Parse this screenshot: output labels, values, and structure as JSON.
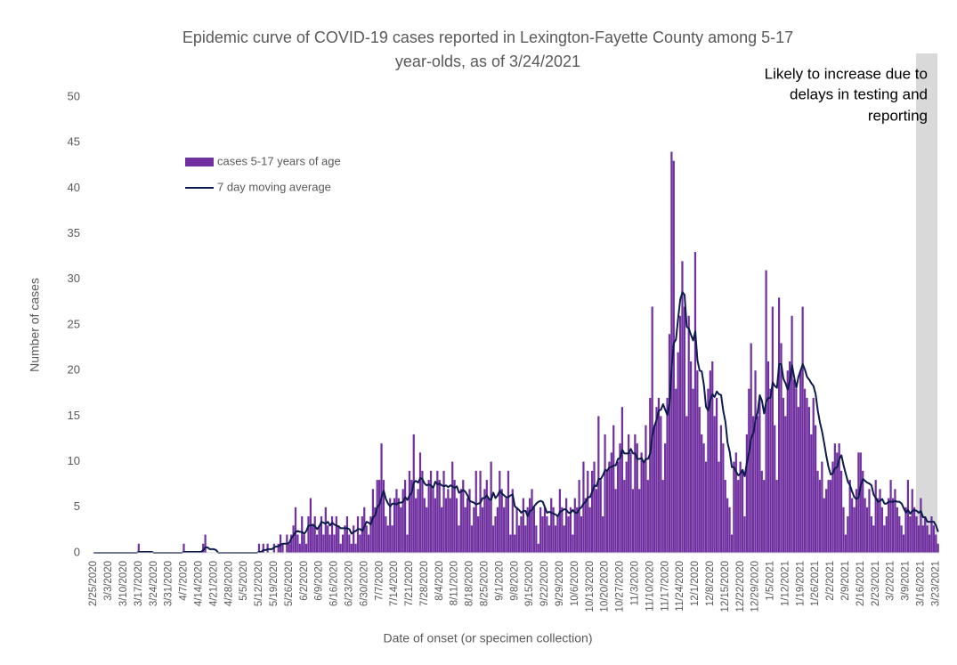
{
  "chart_data": {
    "type": "bar",
    "title": "Epidemic curve of COVID-19 cases reported in Lexington-Fayette County among 5-17",
    "title_line2": "year-olds, as of 3/24/2021",
    "annotation": [
      "Likely to increase due to",
      "delays in testing and",
      "reporting"
    ],
    "x_label": "Date of onset (or specimen collection)",
    "y_label": "Number of cases",
    "ylim": [
      0,
      50
    ],
    "yticks": [
      0,
      5,
      10,
      15,
      20,
      25,
      30,
      35,
      40,
      45,
      50
    ],
    "grid": false,
    "categories": [
      "2/25/2020",
      null,
      null,
      null,
      null,
      null,
      null,
      "3/3/2020",
      null,
      null,
      null,
      null,
      null,
      null,
      "3/10/2020",
      null,
      null,
      null,
      null,
      null,
      null,
      "3/17/2020",
      null,
      null,
      null,
      null,
      null,
      null,
      "3/24/2020",
      null,
      null,
      null,
      null,
      null,
      null,
      "3/31/2020",
      null,
      null,
      null,
      null,
      null,
      null,
      "4/7/2020",
      null,
      null,
      null,
      null,
      null,
      null,
      "4/14/2020",
      null,
      null,
      null,
      null,
      null,
      null,
      "4/21/2020",
      null,
      null,
      null,
      null,
      null,
      null,
      "4/28/2020",
      null,
      null,
      null,
      null,
      null,
      null,
      "5/5/2020",
      null,
      null,
      null,
      null,
      null,
      null,
      "5/12/2020",
      null,
      null,
      null,
      null,
      null,
      null,
      "5/19/2020",
      null,
      null,
      null,
      null,
      null,
      null,
      "5/26/2020",
      null,
      null,
      null,
      null,
      null,
      null,
      "6/2/2020",
      null,
      null,
      null,
      null,
      null,
      null,
      "6/9/2020",
      null,
      null,
      null,
      null,
      null,
      null,
      "6/16/2020",
      null,
      null,
      null,
      null,
      null,
      null,
      "6/23/2020",
      null,
      null,
      null,
      null,
      null,
      null,
      "6/30/2020",
      null,
      null,
      null,
      null,
      null,
      null,
      "7/7/2020",
      null,
      null,
      null,
      null,
      null,
      null,
      "7/14/2020",
      null,
      null,
      null,
      null,
      null,
      null,
      "7/21/2020",
      null,
      null,
      null,
      null,
      null,
      null,
      "7/28/2020",
      null,
      null,
      null,
      null,
      null,
      null,
      "8/4/2020",
      null,
      null,
      null,
      null,
      null,
      null,
      "8/11/2020",
      null,
      null,
      null,
      null,
      null,
      null,
      "8/18/2020",
      null,
      null,
      null,
      null,
      null,
      null,
      "8/25/2020",
      null,
      null,
      null,
      null,
      null,
      null,
      "9/1/2020",
      null,
      null,
      null,
      null,
      null,
      null,
      "9/8/2020",
      null,
      null,
      null,
      null,
      null,
      null,
      "9/15/2020",
      null,
      null,
      null,
      null,
      null,
      null,
      "9/22/2020",
      null,
      null,
      null,
      null,
      null,
      null,
      "9/29/2020",
      null,
      null,
      null,
      null,
      null,
      null,
      "10/6/2020",
      null,
      null,
      null,
      null,
      null,
      null,
      "10/13/2020",
      null,
      null,
      null,
      null,
      null,
      null,
      "10/20/2020",
      null,
      null,
      null,
      null,
      null,
      null,
      "10/27/2020",
      null,
      null,
      null,
      null,
      null,
      null,
      "11/3/2020",
      null,
      null,
      null,
      null,
      null,
      null,
      "11/10/2020",
      null,
      null,
      null,
      null,
      null,
      null,
      "11/17/2020",
      null,
      null,
      null,
      null,
      null,
      null,
      "11/24/2020",
      null,
      null,
      null,
      null,
      null,
      null,
      "12/1/2020",
      null,
      null,
      null,
      null,
      null,
      null,
      "12/8/2020",
      null,
      null,
      null,
      null,
      null,
      null,
      "12/15/2020",
      null,
      null,
      null,
      null,
      null,
      null,
      "12/22/2020",
      null,
      null,
      null,
      null,
      null,
      null,
      "12/29/2020",
      null,
      null,
      null,
      null,
      null,
      null,
      "1/5/2021",
      null,
      null,
      null,
      null,
      null,
      null,
      "1/12/2021",
      null,
      null,
      null,
      null,
      null,
      null,
      "1/19/2021",
      null,
      null,
      null,
      null,
      null,
      null,
      "1/26/2021",
      null,
      null,
      null,
      null,
      null,
      null,
      "2/2/2021",
      null,
      null,
      null,
      null,
      null,
      null,
      "2/9/2021",
      null,
      null,
      null,
      null,
      null,
      null,
      "2/16/2021",
      null,
      null,
      null,
      null,
      null,
      null,
      "2/23/2021",
      null,
      null,
      null,
      null,
      null,
      null,
      "3/2/2021",
      null,
      null,
      null,
      null,
      null,
      null,
      "3/9/2021",
      null,
      null,
      null,
      null,
      null,
      null,
      "3/16/2021",
      null,
      null,
      null,
      null,
      null,
      null,
      "3/23/2021",
      null
    ],
    "series": [
      {
        "name": "cases 5-17 years of age",
        "type": "bar",
        "color": "#7030a0",
        "values": [
          0,
          0,
          0,
          0,
          0,
          0,
          0,
          0,
          0,
          0,
          0,
          0,
          0,
          0,
          0,
          0,
          0,
          0,
          0,
          0,
          0,
          1,
          0,
          0,
          0,
          0,
          0,
          0,
          0,
          0,
          0,
          0,
          0,
          0,
          0,
          0,
          0,
          0,
          0,
          0,
          0,
          0,
          1,
          0,
          0,
          0,
          0,
          0,
          0,
          0,
          0,
          1,
          2,
          0,
          0,
          0,
          0,
          0,
          0,
          0,
          0,
          0,
          0,
          0,
          0,
          0,
          0,
          0,
          0,
          0,
          0,
          0,
          0,
          0,
          0,
          0,
          0,
          1,
          0,
          1,
          0,
          1,
          0,
          0,
          1,
          0,
          1,
          2,
          1,
          0,
          2,
          1,
          2,
          3,
          5,
          2,
          1,
          4,
          2,
          1,
          4,
          6,
          3,
          4,
          2,
          3,
          4,
          2,
          5,
          3,
          2,
          4,
          2,
          4,
          3,
          1,
          2,
          3,
          4,
          2,
          1,
          3,
          1,
          4,
          2,
          4,
          5,
          3,
          2,
          4,
          7,
          5,
          8,
          8,
          12,
          8,
          4,
          3,
          6,
          3,
          6,
          7,
          6,
          5,
          7,
          8,
          2,
          9,
          8,
          13,
          6,
          7,
          11,
          9,
          6,
          5,
          8,
          9,
          7,
          6,
          9,
          8,
          5,
          9,
          6,
          7,
          6,
          10,
          8,
          6,
          3,
          7,
          8,
          5,
          6,
          7,
          3,
          5,
          9,
          4,
          9,
          5,
          7,
          8,
          6,
          10,
          3,
          4,
          5,
          9,
          7,
          5,
          6,
          9,
          2,
          7,
          2,
          5,
          3,
          4,
          6,
          3,
          5,
          6,
          7,
          5,
          3,
          1,
          5,
          4,
          5,
          4,
          3,
          6,
          5,
          3,
          4,
          7,
          5,
          3,
          6,
          4,
          5,
          2,
          6,
          5,
          8,
          4,
          10,
          6,
          9,
          5,
          9,
          10,
          7,
          15,
          8,
          4,
          13,
          9,
          10,
          11,
          14,
          7,
          10,
          12,
          16,
          8,
          10,
          13,
          11,
          7,
          13,
          12,
          7,
          11,
          10,
          14,
          8,
          17,
          27,
          14,
          16,
          17,
          15,
          8,
          12,
          17,
          24,
          44,
          43,
          18,
          22,
          26,
          32,
          27,
          15,
          26,
          21,
          18,
          33,
          20,
          16,
          13,
          12,
          10,
          18,
          20,
          21,
          15,
          17,
          10,
          14,
          12,
          8,
          6,
          5,
          2,
          10,
          11,
          8,
          10,
          9,
          4,
          13,
          18,
          23,
          15,
          20,
          15,
          17,
          9,
          8,
          31,
          21,
          18,
          27,
          14,
          8,
          28,
          23,
          17,
          15,
          20,
          21,
          26,
          19,
          18,
          16,
          20,
          27,
          18,
          17,
          16,
          13,
          17,
          14,
          9,
          8,
          10,
          6,
          7,
          8,
          8,
          10,
          12,
          11,
          12,
          9,
          5,
          2,
          4,
          8,
          6,
          5,
          7,
          11,
          11,
          9,
          6,
          5,
          7,
          4,
          3,
          8,
          6,
          7,
          5,
          3,
          4,
          6,
          8,
          6,
          7,
          5,
          4,
          3,
          2,
          5,
          8,
          4,
          7,
          5,
          4,
          3,
          6,
          3,
          4,
          3,
          2,
          4,
          3,
          2,
          1
        ]
      },
      {
        "name": "7 day moving average",
        "type": "line",
        "color": "#0d1b4f",
        "values": [
          0,
          0,
          0,
          0,
          0,
          0,
          0,
          0,
          0,
          0,
          0,
          0,
          0,
          0,
          0,
          0,
          0,
          0,
          0,
          0,
          0,
          0.1,
          0.1,
          0.1,
          0.1,
          0.1,
          0.1,
          0.1,
          0,
          0,
          0,
          0,
          0,
          0,
          0,
          0,
          0,
          0,
          0,
          0,
          0,
          0,
          0.1,
          0.1,
          0.1,
          0.1,
          0.1,
          0.1,
          0.1,
          0.1,
          0.1,
          0.3,
          0.6,
          0.6,
          0.4,
          0.4,
          0.4,
          0.3,
          0,
          0,
          0,
          0,
          0,
          0,
          0,
          0,
          0,
          0,
          0,
          0,
          0,
          0,
          0,
          0,
          0,
          0,
          0,
          0.1,
          0.1,
          0.3,
          0.3,
          0.4,
          0.4,
          0.4,
          0.6,
          0.7,
          0.7,
          0.9,
          1,
          1,
          1,
          1.1,
          1.6,
          1.9,
          2.3,
          2.4,
          2.3,
          2.3,
          2.1,
          2.4,
          3,
          3,
          3.1,
          2.9,
          2.6,
          2.9,
          3.4,
          3.3,
          3.2,
          3.4,
          3,
          3.3,
          3.1,
          3,
          2.9,
          2.7,
          2.7,
          2.7,
          2.7,
          2.6,
          2.1,
          2.3,
          2.4,
          2.6,
          2.6,
          2.4,
          2.9,
          3.4,
          3.3,
          3.1,
          3.9,
          4.1,
          5,
          5.3,
          6.1,
          6.8,
          5.9,
          5.4,
          5.1,
          5.4,
          5.4,
          5.3,
          5.5,
          5.5,
          5.6,
          6.1,
          5.8,
          6.3,
          6.6,
          7.7,
          7.9,
          7.7,
          8.2,
          8.1,
          7.6,
          7.4,
          7.5,
          7.4,
          7.1,
          7.8,
          7.5,
          7.6,
          7.4,
          7.3,
          7.4,
          7.2,
          7.4,
          7.3,
          7.1,
          7.3,
          6.6,
          6.7,
          6.9,
          6.7,
          6.3,
          5.7,
          5.6,
          5.5,
          5.3,
          5.4,
          5.5,
          6,
          6,
          6.3,
          5.9,
          5.8,
          6.6,
          6,
          6.3,
          6.8,
          6.5,
          6.3,
          6.1,
          6.1,
          6.3,
          6.4,
          5.1,
          4.9,
          4.7,
          4.4,
          4.6,
          4.6,
          4,
          4.6,
          4.7,
          5.1,
          5.4,
          5.6,
          5.7,
          5.6,
          5,
          4.4,
          4.5,
          4.4,
          4.3,
          4.2,
          4,
          4.5,
          4.6,
          4.8,
          4.7,
          4.4,
          4.4,
          4.7,
          4.4,
          4.4,
          4.8,
          5,
          5.4,
          5.6,
          6.1,
          6.1,
          6.7,
          7.4,
          7.3,
          8.1,
          8.1,
          8.5,
          9.1,
          9,
          9.4,
          9.4,
          9.6,
          9.6,
          10.3,
          10.4,
          11.3,
          10.9,
          10.9,
          10.9,
          11.4,
          10.9,
          10.9,
          10.3,
          10.3,
          10.4,
          9.9,
          10.3,
          10.3,
          10.9,
          12.9,
          13.9,
          14.6,
          15.6,
          15.7,
          16.3,
          15.7,
          15.1,
          16.4,
          20.4,
          23,
          23.4,
          25.7,
          27.8,
          28.6,
          28.3,
          24.8,
          24.6,
          23.9,
          23.3,
          24.3,
          21.1,
          20,
          19.9,
          18.4,
          16,
          15.6,
          16.8,
          17.4,
          17.1,
          17.7,
          17.4,
          17.3,
          15.6,
          14.4,
          12.1,
          11.1,
          9.4,
          9.4,
          8.9,
          8.5,
          8.7,
          9.1,
          8.4,
          9.9,
          11,
          12.6,
          13.1,
          14.6,
          15.4,
          17.3,
          16.7,
          15.3,
          16.6,
          17,
          17,
          18.7,
          18.3,
          18.1,
          20.7,
          20.7,
          19.1,
          18.6,
          17.9,
          18.9,
          20.6,
          19.3,
          18.1,
          19.3,
          20,
          20.7,
          20.1,
          19.3,
          19,
          18.6,
          18.3,
          17.4,
          15.6,
          14.3,
          13.3,
          12,
          10.6,
          9.4,
          8.6,
          8.7,
          9.3,
          9.4,
          10.3,
          10.7,
          9.6,
          8.7,
          7.8,
          7.4,
          6.7,
          6.1,
          5.9,
          6.1,
          7.4,
          8.1,
          7.9,
          7.7,
          7.6,
          7.4,
          6.4,
          6,
          5.6,
          5.7,
          5.9,
          5.4,
          5.4,
          5.6,
          5.6,
          5.6,
          5.7,
          5.6,
          5.6,
          5.4,
          4.9,
          4.4,
          4.7,
          4.3,
          4.6,
          4.7,
          4.6,
          4.4,
          4.6,
          3.9,
          3.9,
          3.4,
          3.4,
          3.4,
          3.4,
          3,
          2.3
        ]
      }
    ]
  }
}
